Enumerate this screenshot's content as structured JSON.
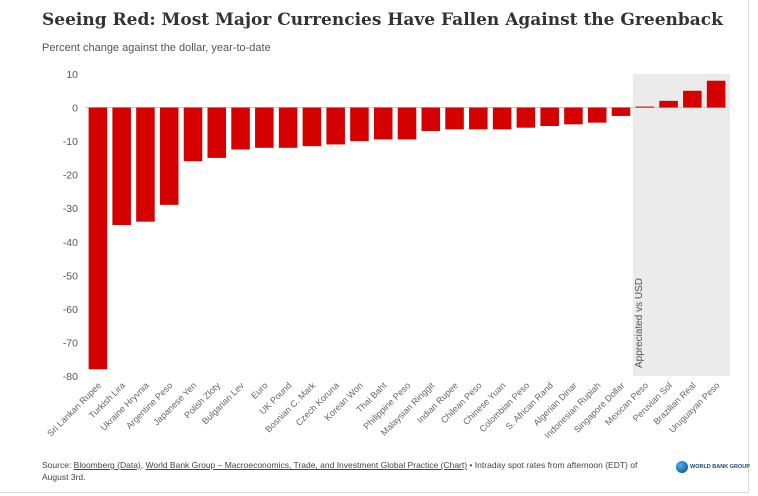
{
  "title": "Seeing Red: Most Major Currencies Have Fallen Against the Greenback",
  "subtitle": "Percent change against the dollar, year-to-date",
  "chart_data": {
    "type": "bar",
    "categories": [
      "Sri Lankan Rupee",
      "Turkish Lira",
      "Ukraine Hryvnia",
      "Argentine Peso",
      "Japanese Yen",
      "Polish Zloty",
      "Bulgarian Lev",
      "Euro",
      "UK Pound",
      "Bosnian C. Mark",
      "Czech Koruna",
      "Korean Won",
      "Thai Baht",
      "Philippine Peso",
      "Malaysian Ringgit",
      "Indian Rupee",
      "Chilean Peso",
      "Chinese Yuan",
      "Colombian Peso",
      "S. African Rand",
      "Algerian Dinar",
      "Indonesian Rupiah",
      "Singapore Dollar",
      "Mexican Peso",
      "Peruvian Sol",
      "Brazilian Real",
      "Uruguayan Peso"
    ],
    "values": [
      -78,
      -35,
      -34,
      -29,
      -16,
      -15,
      -12.5,
      -12,
      -12,
      -11.5,
      -11,
      -10,
      -9.5,
      -9.5,
      -7,
      -6.5,
      -6.5,
      -6.5,
      -6,
      -5.5,
      -5,
      -4.5,
      -2.5,
      0.3,
      2,
      5,
      8
    ],
    "ylim": [
      -80,
      10
    ],
    "yticks": [
      10,
      0,
      -10,
      -20,
      -30,
      -40,
      -50,
      -60,
      -70,
      -80
    ],
    "bar_color": "#d50000",
    "shade_color": "#ebebeb",
    "shade_start_category": "Mexican Peso",
    "annotation": "Appreciated vs USD",
    "xlabel": "",
    "ylabel": ""
  },
  "footer": {
    "source_prefix": "Source:",
    "source_link1": "Bloomberg (Data)",
    "source_sep": ",",
    "source_link2": "World Bank Group – Macroeconomics, Trade, and Investment Global Practice (Chart)",
    "source_suffix": "• Intraday spot rates from afternoon (EDT) of August 3rd.",
    "logo_text": "WORLD BANK GROUP"
  }
}
